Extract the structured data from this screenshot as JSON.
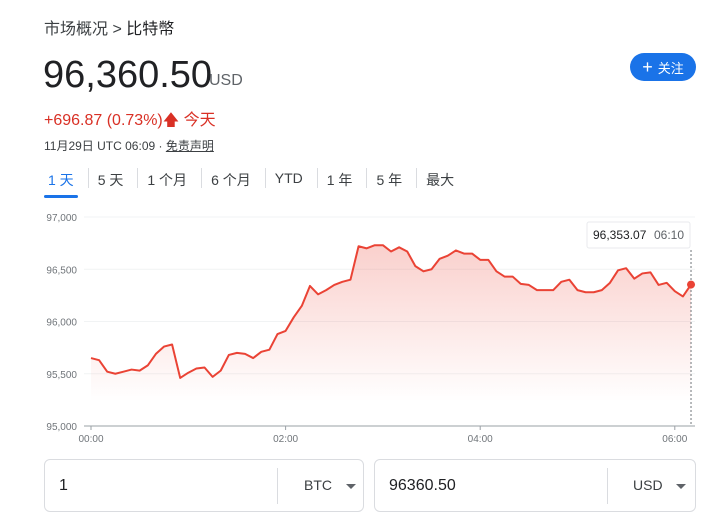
{
  "breadcrumb": {
    "parent": "市场概况",
    "separator": ">",
    "current": "比特幣"
  },
  "price": {
    "value": "96,360.50",
    "currency": "USD"
  },
  "follow_button": {
    "label": "关注",
    "icon": "plus-icon"
  },
  "change": {
    "text": "+696.87 (0.73%)",
    "arrow": "arrow-up-icon",
    "period": "今天",
    "color": "#d93025"
  },
  "timestamp": {
    "text": "11月29日 UTC 06:09 · ",
    "disclaimer": "免责声明"
  },
  "tabs": [
    {
      "label": "1 天",
      "active": true
    },
    {
      "label": "5 天"
    },
    {
      "label": "1 个月"
    },
    {
      "label": "6 个月"
    },
    {
      "label": "YTD"
    },
    {
      "label": "1 年"
    },
    {
      "label": "5 年"
    },
    {
      "label": "最大"
    }
  ],
  "chart_data": {
    "type": "area",
    "ylim": [
      95000,
      97000
    ],
    "yticks": [
      "97,000",
      "96,500",
      "96,000",
      "95,500",
      "95,000"
    ],
    "ytick_values": [
      97000,
      96500,
      96000,
      95500,
      95000
    ],
    "xticks": [
      "00:00",
      "02:00",
      "04:00",
      "06:00"
    ],
    "xlim": [
      "00:00",
      "06:10"
    ],
    "grid": true,
    "line_color": "#ea4335",
    "x": [
      "00:00",
      "00:05",
      "00:10",
      "00:15",
      "00:20",
      "00:25",
      "00:30",
      "00:35",
      "00:40",
      "00:45",
      "00:50",
      "00:55",
      "01:00",
      "01:05",
      "01:10",
      "01:15",
      "01:20",
      "01:25",
      "01:30",
      "01:35",
      "01:40",
      "01:45",
      "01:50",
      "01:55",
      "02:00",
      "02:05",
      "02:10",
      "02:15",
      "02:20",
      "02:25",
      "02:30",
      "02:35",
      "02:40",
      "02:45",
      "02:50",
      "02:55",
      "03:00",
      "03:05",
      "03:10",
      "03:15",
      "03:20",
      "03:25",
      "03:30",
      "03:35",
      "03:40",
      "03:45",
      "03:50",
      "03:55",
      "04:00",
      "04:05",
      "04:10",
      "04:15",
      "04:20",
      "04:25",
      "04:30",
      "04:35",
      "04:40",
      "04:45",
      "04:50",
      "04:55",
      "05:00",
      "05:05",
      "05:10",
      "05:15",
      "05:20",
      "05:25",
      "05:30",
      "05:35",
      "05:40",
      "05:45",
      "05:50",
      "05:55",
      "06:00",
      "06:05",
      "06:10"
    ],
    "values": [
      95650,
      95630,
      95520,
      95500,
      95520,
      95540,
      95530,
      95580,
      95690,
      95760,
      95780,
      95460,
      95510,
      95550,
      95560,
      95470,
      95530,
      95680,
      95700,
      95690,
      95650,
      95710,
      95730,
      95880,
      95910,
      96040,
      96150,
      96340,
      96260,
      96300,
      96350,
      96380,
      96400,
      96720,
      96700,
      96730,
      96730,
      96670,
      96710,
      96670,
      96530,
      96480,
      96500,
      96600,
      96630,
      96680,
      96650,
      96650,
      96590,
      96590,
      96480,
      96430,
      96430,
      96360,
      96350,
      96300,
      96300,
      96300,
      96380,
      96400,
      96300,
      96280,
      96280,
      96300,
      96370,
      96490,
      96510,
      96410,
      96460,
      96470,
      96350,
      96370,
      96290,
      96240,
      96353.07
    ],
    "tooltip": {
      "value": "96,353.07",
      "time": "06:10"
    }
  },
  "converter": {
    "from": {
      "value": "1",
      "unit": "BTC"
    },
    "to": {
      "value": "96360.50",
      "unit": "USD"
    }
  }
}
